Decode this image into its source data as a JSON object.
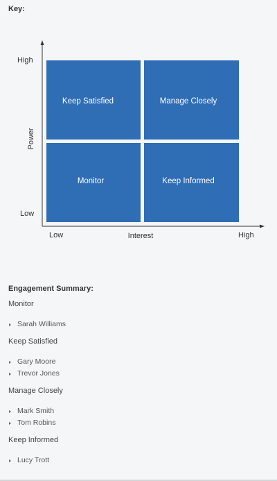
{
  "key_label": "Key:",
  "matrix": {
    "y_axis_label": "Power",
    "x_axis_label": "Interest",
    "y_high": "High",
    "y_low": "Low",
    "x_low": "Low",
    "x_high": "High",
    "quadrants": {
      "top_left": "Keep Satisfied",
      "top_right": "Manage Closely",
      "bottom_left": "Monitor",
      "bottom_right": "Keep Informed"
    },
    "colors": {
      "quadrant": "#2f6db5",
      "axis": "#333333"
    }
  },
  "summary": {
    "title": "Engagement Summary:",
    "groups": [
      {
        "title": "Monitor",
        "items": [
          "Sarah Williams"
        ]
      },
      {
        "title": "Keep Satisfied",
        "items": [
          "Gary Moore",
          "Trevor Jones"
        ]
      },
      {
        "title": "Manage Closely",
        "items": [
          "Mark Smith",
          "Tom Robins"
        ]
      },
      {
        "title": "Keep Informed",
        "items": [
          "Lucy Trott"
        ]
      }
    ]
  }
}
